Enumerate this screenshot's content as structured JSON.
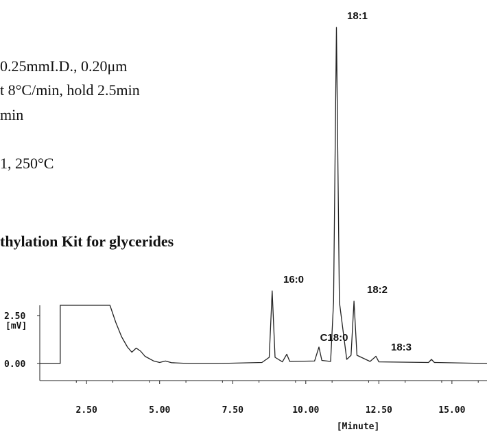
{
  "method_text": {
    "lines": [
      "0.25mmI.D., 0.20μm",
      "t 8°C/min, hold 2.5min",
      "min",
      "1, 250°C"
    ],
    "heading": "thylation Kit for glycerides"
  },
  "chart_data": {
    "type": "line",
    "title": "",
    "xlabel": "[Minute]",
    "ylabel": "[mV]",
    "xlim": [
      0.9,
      16.2
    ],
    "ylim": [
      -0.8,
      40
    ],
    "x_ticks": [
      2.5,
      5.0,
      7.5,
      10.0,
      12.5,
      15.0
    ],
    "x_tick_labels": [
      "2.50",
      "5.00",
      "7.50",
      "10.00",
      "12.50",
      "15.00"
    ],
    "y_tick_labels": [
      "2.50",
      "0.00"
    ],
    "y_ticks": [
      2.5,
      0.0
    ],
    "grid": false,
    "series": [
      {
        "points": [
          [
            0.9,
            0.0
          ],
          [
            1.6,
            0.0
          ],
          [
            1.6,
            3.0
          ],
          [
            3.3,
            3.0
          ],
          [
            3.5,
            2.0
          ],
          [
            3.7,
            1.3
          ],
          [
            3.9,
            0.8
          ],
          [
            4.05,
            0.55
          ],
          [
            4.2,
            0.75
          ],
          [
            4.35,
            0.6
          ],
          [
            4.5,
            0.35
          ],
          [
            4.8,
            0.12
          ],
          [
            5.0,
            0.05
          ],
          [
            5.2,
            0.12
          ],
          [
            5.4,
            0.04
          ],
          [
            6.0,
            0.0
          ],
          [
            7.0,
            0.0
          ],
          [
            8.5,
            0.05
          ],
          [
            8.75,
            0.3
          ],
          [
            8.85,
            3.4
          ],
          [
            8.95,
            0.3
          ],
          [
            9.2,
            0.08
          ],
          [
            9.35,
            0.45
          ],
          [
            9.45,
            0.1
          ],
          [
            10.3,
            0.12
          ],
          [
            10.45,
            0.8
          ],
          [
            10.55,
            0.15
          ],
          [
            10.85,
            0.1
          ],
          [
            10.95,
            3.0
          ],
          [
            11.05,
            36.0
          ],
          [
            11.15,
            3.0
          ],
          [
            11.4,
            0.2
          ],
          [
            11.55,
            0.4
          ],
          [
            11.65,
            3.1
          ],
          [
            11.75,
            0.4
          ],
          [
            12.2,
            0.1
          ],
          [
            12.4,
            0.35
          ],
          [
            12.5,
            0.08
          ],
          [
            14.2,
            0.05
          ],
          [
            14.3,
            0.2
          ],
          [
            14.4,
            0.05
          ],
          [
            16.2,
            0.0
          ]
        ]
      }
    ],
    "peaks": [
      {
        "label": "16:0",
        "x": 8.85,
        "y": 3.4
      },
      {
        "label": "C18:0",
        "x": 10.45,
        "y": 0.8
      },
      {
        "label": "18:1",
        "x": 11.05,
        "y": 36.0
      },
      {
        "label": "18:2",
        "x": 11.65,
        "y": 3.1
      },
      {
        "label": "18:3",
        "x": 12.4,
        "y": 0.35
      }
    ]
  }
}
